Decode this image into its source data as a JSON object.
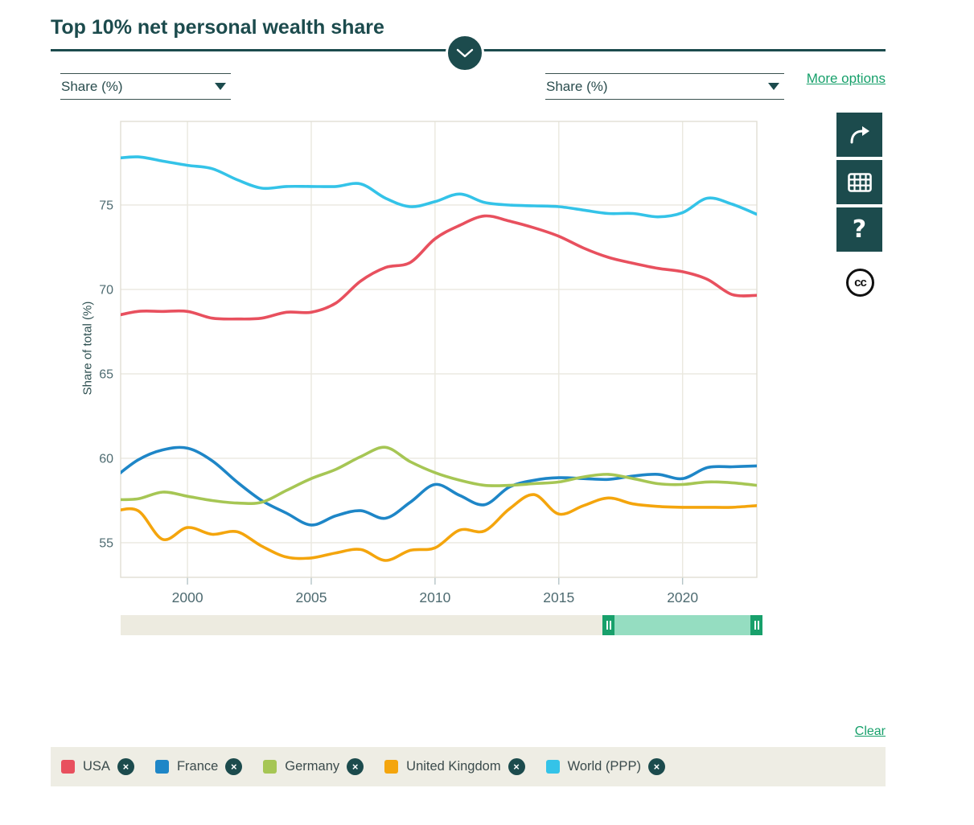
{
  "header": {
    "title": "Top 10% net personal wealth share"
  },
  "controls": {
    "left_select": {
      "value": "Share (%)"
    },
    "right_select": {
      "value": "Share (%)"
    },
    "more_options_label": "More options"
  },
  "toolbar": {
    "share_icon": "share-arrow-icon",
    "table_icon": "data-table-icon",
    "help_label": "?",
    "cc_label": "cc"
  },
  "chart_data": {
    "type": "line",
    "title": "Top 10% net personal wealth share",
    "xlabel": "",
    "ylabel": "Share of total (%)",
    "x": [
      1997,
      1998,
      1999,
      2000,
      2001,
      2002,
      2003,
      2004,
      2005,
      2006,
      2007,
      2008,
      2009,
      2010,
      2011,
      2012,
      2013,
      2014,
      2015,
      2016,
      2017,
      2018,
      2019,
      2020,
      2021,
      2022,
      2023
    ],
    "series": [
      {
        "name": "USA",
        "color": "#e8505e",
        "values": [
          68.4,
          68.7,
          68.7,
          68.7,
          68.3,
          68.25,
          68.3,
          68.65,
          68.65,
          69.2,
          70.5,
          71.3,
          71.6,
          73.0,
          73.8,
          74.35,
          74.05,
          73.65,
          73.15,
          72.45,
          71.9,
          71.55,
          71.25,
          71.05,
          70.6,
          69.7,
          69.65
        ]
      },
      {
        "name": "France",
        "color": "#1e86c7",
        "values": [
          58.8,
          59.9,
          60.5,
          60.6,
          59.85,
          58.6,
          57.5,
          56.75,
          56.05,
          56.6,
          56.9,
          56.45,
          57.4,
          58.45,
          57.8,
          57.25,
          58.3,
          58.7,
          58.85,
          58.8,
          58.75,
          58.95,
          59.05,
          58.8,
          59.45,
          59.5,
          59.55
        ]
      },
      {
        "name": "Germany",
        "color": "#a6c654",
        "values": [
          57.55,
          57.6,
          58.0,
          57.75,
          57.5,
          57.35,
          57.4,
          58.1,
          58.8,
          59.35,
          60.1,
          60.65,
          59.8,
          59.15,
          58.7,
          58.4,
          58.4,
          58.5,
          58.6,
          58.9,
          59.05,
          58.8,
          58.5,
          58.45,
          58.6,
          58.55,
          58.4
        ]
      },
      {
        "name": "United Kingdom",
        "color": "#f4a50d",
        "values": [
          56.85,
          56.9,
          55.2,
          55.9,
          55.5,
          55.65,
          54.8,
          54.15,
          54.1,
          54.4,
          54.6,
          53.95,
          54.55,
          54.7,
          55.75,
          55.7,
          57.0,
          57.85,
          56.7,
          57.2,
          57.65,
          57.3,
          57.15,
          57.1,
          57.1,
          57.1,
          57.2
        ]
      },
      {
        "name": "World (PPP)",
        "color": "#34c3e8",
        "values": [
          77.75,
          77.85,
          77.6,
          77.35,
          77.15,
          76.5,
          76.0,
          76.1,
          76.1,
          76.1,
          76.25,
          75.4,
          74.9,
          75.2,
          75.65,
          75.15,
          75.0,
          74.95,
          74.9,
          74.7,
          74.5,
          74.5,
          74.3,
          74.55,
          75.4,
          75.05,
          74.45
        ]
      }
    ],
    "y_ticks": [
      55,
      60,
      65,
      70,
      75
    ],
    "x_ticks": [
      2000,
      2005,
      2010,
      2015,
      2020
    ],
    "xlim": [
      1997.3,
      2023
    ],
    "ylim": [
      52.95,
      79.95
    ],
    "grid": true,
    "legend_position": "bottom",
    "colors": {
      "grid": "#eae8df",
      "plot_border": "#e0ded4",
      "tick_mark": "#b5c4c7",
      "tick_label": "#4e6b71"
    }
  },
  "slider": {
    "range_start_fraction": 0.751,
    "range_end_fraction": 1.0
  },
  "legend": {
    "clear_label": "Clear",
    "items": [
      {
        "label": "USA",
        "color": "#e8505e"
      },
      {
        "label": "France",
        "color": "#1e86c7"
      },
      {
        "label": "Germany",
        "color": "#a6c654"
      },
      {
        "label": "United Kingdom",
        "color": "#f4a50d"
      },
      {
        "label": "World (PPP)",
        "color": "#34c3e8"
      }
    ]
  }
}
